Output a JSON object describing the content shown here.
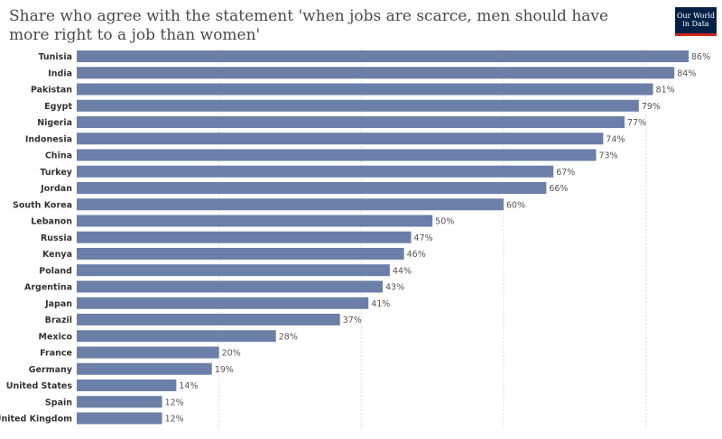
{
  "title": "Share who agree with the statement 'when jobs are scarce, men should have more right to a job than women'",
  "logo": {
    "line1": "Our World",
    "line2": "in Data"
  },
  "colors": {
    "bar": "#6b7fa8",
    "grid": "#dddddd",
    "logo_bg": "#002147",
    "logo_accent": "#ce261e"
  },
  "chart_data": {
    "type": "bar",
    "orientation": "horizontal",
    "title": "Share who agree with the statement 'when jobs are scarce, men should have more right to a job than women'",
    "xlabel": "",
    "ylabel": "",
    "xlim": [
      0,
      86
    ],
    "grid": "vertical dotted",
    "unit": "%",
    "categories": [
      "Tunisia",
      "India",
      "Pakistan",
      "Egypt",
      "Nigeria",
      "Indonesia",
      "China",
      "Turkey",
      "Jordan",
      "South Korea",
      "Lebanon",
      "Russia",
      "Kenya",
      "Poland",
      "Argentina",
      "Japan",
      "Brazil",
      "Mexico",
      "France",
      "Germany",
      "United States",
      "Spain",
      "United Kingdom"
    ],
    "values": [
      86,
      84,
      81,
      79,
      77,
      74,
      73,
      67,
      66,
      60,
      50,
      47,
      46,
      44,
      43,
      41,
      37,
      28,
      20,
      19,
      14,
      12,
      12
    ],
    "labels": [
      "86%",
      "84%",
      "81%",
      "79%",
      "77%",
      "74%",
      "73%",
      "67%",
      "66%",
      "60%",
      "50%",
      "47%",
      "46%",
      "44%",
      "43%",
      "41%",
      "37%",
      "28%",
      "20%",
      "19%",
      "14%",
      "12%",
      "12%"
    ]
  }
}
